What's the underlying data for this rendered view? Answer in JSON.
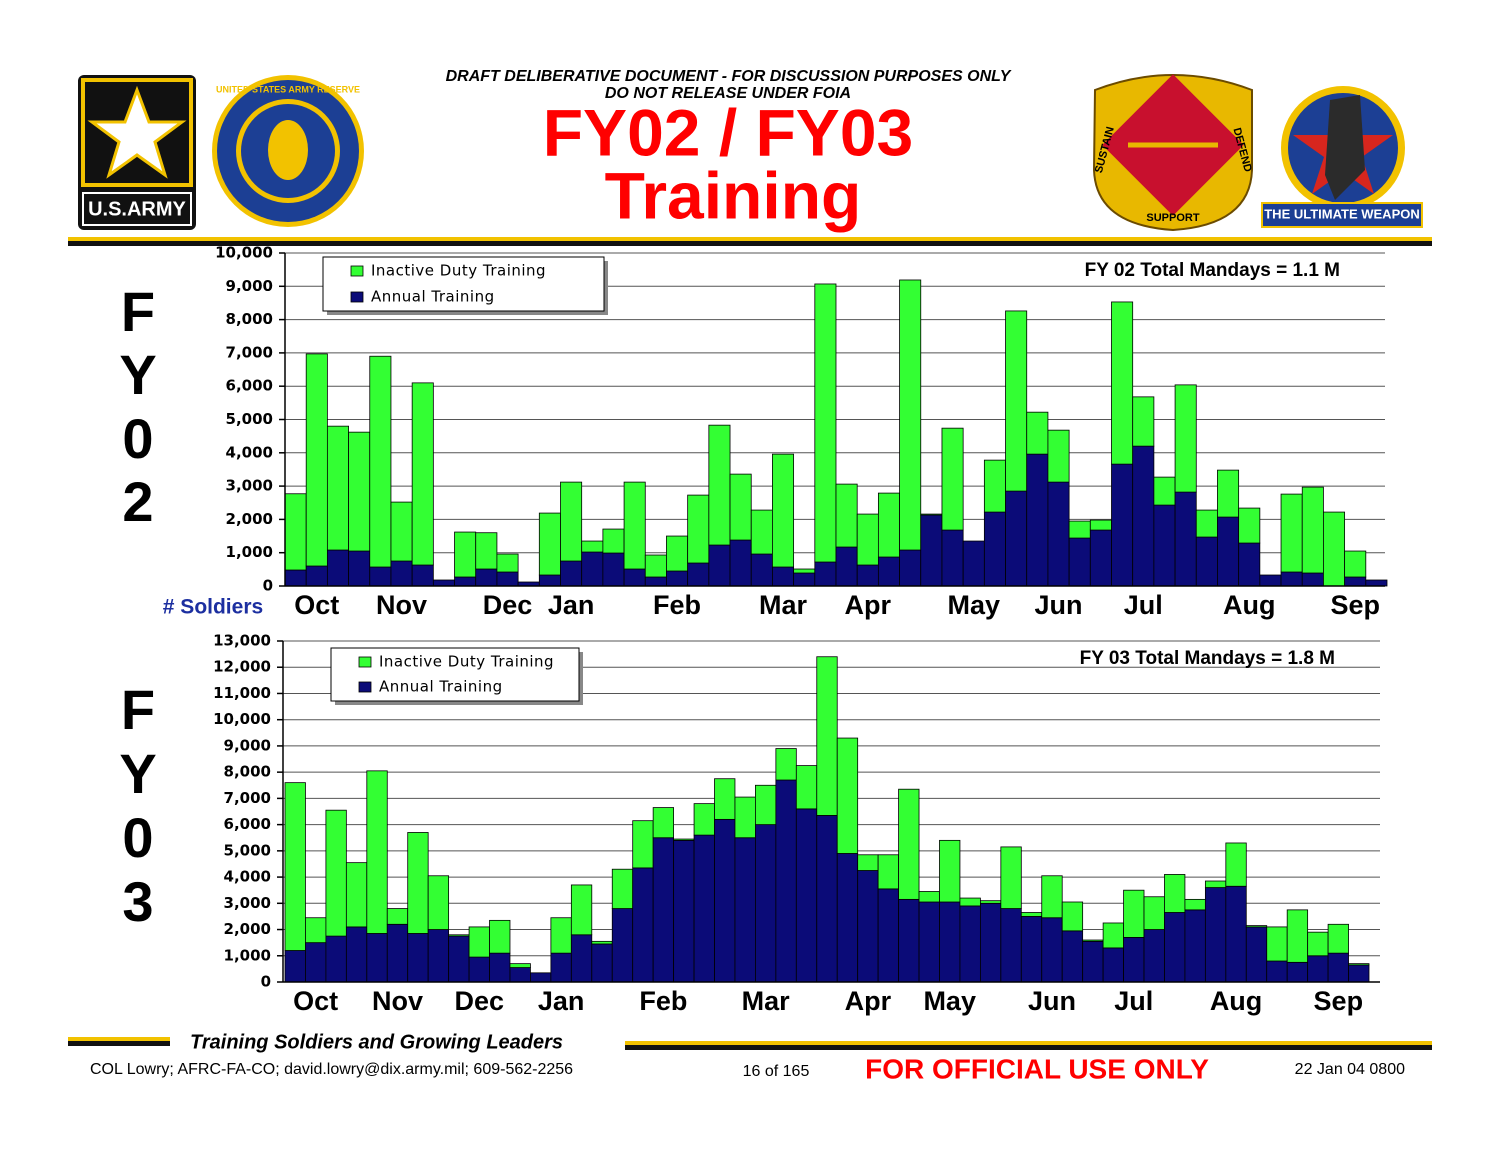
{
  "header": {
    "draft_line1": "DRAFT DELIBERATIVE DOCUMENT - FOR DISCUSSION PURPOSES ONLY",
    "draft_line2": "DO NOT RELEASE UNDER FOIA",
    "title_line1": "FY02 / FY03",
    "title_line2": "Training"
  },
  "logos": {
    "army": "U.S.ARMY",
    "reserve": "UNITED STATES ARMY RESERVE",
    "crest_left": "SUSTAIN",
    "crest_bottom": "SUPPORT",
    "crest_right": "DEFEND",
    "weapon": "THE ULTIMATE WEAPON"
  },
  "chart_data": [
    {
      "type": "bar",
      "stacked": true,
      "side_label": [
        "F",
        "Y",
        "0",
        "2"
      ],
      "y_label": "# Soldiers",
      "annotation": "FY 02 Total Mandays = 1.1 M",
      "legend": "upper left",
      "grid": true,
      "ylim": [
        0,
        10000
      ],
      "yticks": [
        0,
        {
          "value": 1000,
          "label": "1,000"
        },
        {
          "value": 2000,
          "label": "2,000"
        },
        {
          "value": 3000,
          "label": "3,000"
        },
        {
          "value": 4000,
          "label": "4,000"
        },
        {
          "value": 5000,
          "label": "5,000"
        },
        {
          "value": 6000,
          "label": "6,000"
        },
        {
          "value": 7000,
          "label": "7,000"
        },
        {
          "value": 8000,
          "label": "8,000"
        },
        {
          "value": 9000,
          "label": "9,000"
        },
        {
          "value": 10000,
          "label": "10,000"
        }
      ],
      "categories": [
        null,
        "Oct",
        null,
        null,
        null,
        "Nov",
        null,
        null,
        null,
        null,
        "Dec",
        null,
        null,
        "Jan",
        null,
        null,
        null,
        null,
        "Feb",
        null,
        null,
        null,
        null,
        "Mar",
        null,
        null,
        null,
        "Apr",
        null,
        null,
        null,
        null,
        "May",
        null,
        null,
        null,
        "Jun",
        null,
        null,
        null,
        "Jul",
        null,
        null,
        null,
        null,
        "Aug",
        null,
        null,
        null,
        null,
        "Sep",
        null
      ],
      "series": [
        {
          "name": "Inactive Duty Training",
          "color": "#33ff33",
          "values": [
            2290,
            6370,
            3720,
            3570,
            6330,
            1770,
            5470,
            0,
            1350,
            1090,
            540,
            0,
            1860,
            2370,
            330,
            720,
            2610,
            660,
            1050,
            2040,
            3600,
            1980,
            1320,
            3390,
            120,
            8350,
            1890,
            1530,
            1920,
            8110,
            30,
            3060,
            0,
            1560,
            5410,
            1260,
            1560,
            510,
            300,
            4870,
            1480,
            840,
            3220,
            810,
            1410,
            1050,
            0,
            2340,
            2580,
            2220,
            780,
            0
          ]
        },
        {
          "name": "Annual Training",
          "color": "#0b0b78",
          "values": [
            480,
            600,
            1080,
            1050,
            570,
            750,
            630,
            180,
            270,
            510,
            420,
            120,
            330,
            750,
            1020,
            990,
            510,
            270,
            450,
            690,
            1230,
            1380,
            960,
            570,
            390,
            720,
            1170,
            630,
            870,
            1080,
            2130,
            1680,
            1350,
            2220,
            2850,
            3960,
            3120,
            1440,
            1680,
            3660,
            4200,
            2430,
            2820,
            1470,
            2070,
            1290,
            330,
            420,
            390,
            0,
            270,
            180
          ]
        }
      ]
    },
    {
      "type": "bar",
      "stacked": true,
      "side_label": [
        "F",
        "Y",
        "0",
        "3"
      ],
      "annotation": "FY 03 Total Mandays = 1.8 M",
      "legend": "upper left",
      "grid": true,
      "ylim": [
        0,
        13000
      ],
      "yticks": [
        0,
        {
          "value": 1000,
          "label": "1,000"
        },
        {
          "value": 2000,
          "label": "2,000"
        },
        {
          "value": 3000,
          "label": "3,000"
        },
        {
          "value": 4000,
          "label": "4,000"
        },
        {
          "value": 5000,
          "label": "5,000"
        },
        {
          "value": 6000,
          "label": "6,000"
        },
        {
          "value": 7000,
          "label": "7,000"
        },
        {
          "value": 8000,
          "label": "8,000"
        },
        {
          "value": 9000,
          "label": "9,000"
        },
        {
          "value": 10000,
          "label": "10,000"
        },
        {
          "value": 11000,
          "label": "11,000"
        },
        {
          "value": 12000,
          "label": "12,000"
        },
        {
          "value": 13000,
          "label": "13,000"
        }
      ],
      "categories": [
        null,
        "Oct",
        null,
        null,
        null,
        "Nov",
        null,
        null,
        null,
        "Dec",
        null,
        null,
        null,
        "Jan",
        null,
        null,
        null,
        null,
        "Feb",
        null,
        null,
        null,
        null,
        "Mar",
        null,
        null,
        null,
        null,
        "Apr",
        null,
        null,
        null,
        "May",
        null,
        null,
        null,
        null,
        "Jun",
        null,
        null,
        null,
        "Jul",
        null,
        null,
        null,
        null,
        "Aug",
        null,
        null,
        null,
        null,
        "Sep",
        null
      ],
      "series": [
        {
          "name": "Inactive Duty Training",
          "color": "#33ff33",
          "values": [
            6400,
            950,
            4800,
            2450,
            6200,
            600,
            3850,
            2050,
            50,
            1150,
            1250,
            150,
            0,
            1350,
            1900,
            100,
            1500,
            1800,
            1150,
            50,
            1200,
            1550,
            1550,
            1500,
            1200,
            1650,
            6050,
            4400,
            600,
            1300,
            4200,
            400,
            2350,
            300,
            100,
            2350,
            150,
            1600,
            1100,
            50,
            950,
            1800,
            1250,
            1450,
            400,
            250,
            1650,
            50,
            1300,
            2000,
            900,
            1100,
            50
          ]
        },
        {
          "name": "Annual Training",
          "color": "#0b0b78",
          "values": [
            1200,
            1500,
            1750,
            2100,
            1850,
            2200,
            1850,
            2000,
            1750,
            950,
            1100,
            550,
            350,
            1100,
            1800,
            1450,
            2800,
            4350,
            5500,
            5400,
            5600,
            6200,
            5500,
            6000,
            7700,
            6600,
            6350,
            4900,
            4250,
            3550,
            3150,
            3050,
            3050,
            2900,
            3000,
            2800,
            2500,
            2450,
            1950,
            1550,
            1300,
            1700,
            2000,
            2650,
            2750,
            3600,
            3650,
            2100,
            800,
            750,
            1000,
            1100,
            650
          ]
        }
      ]
    }
  ],
  "footer": {
    "motto": "Training Soldiers and Growing Leaders",
    "contact": "COL Lowry; AFRC-FA-CO; david.lowry@dix.army.mil; 609-562-2256",
    "page": "16 of 165",
    "classification": "FOR OFFICIAL USE ONLY",
    "date": "22 Jan 04 0800"
  }
}
